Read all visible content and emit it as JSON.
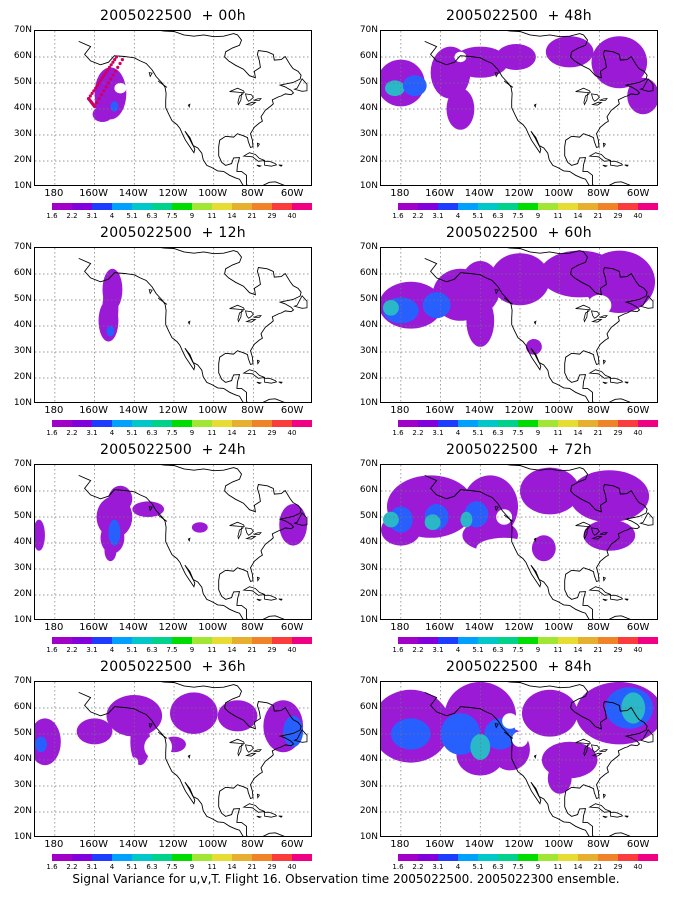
{
  "panels": [
    {
      "title": "2005022500  + 00h"
    },
    {
      "title": "2005022500  + 48h"
    },
    {
      "title": "2005022500  + 12h"
    },
    {
      "title": "2005022500  + 60h"
    },
    {
      "title": "2005022500  + 24h"
    },
    {
      "title": "2005022500  + 72h"
    },
    {
      "title": "2005022500  + 36h"
    },
    {
      "title": "2005022500  + 84h"
    }
  ],
  "lat_labels": [
    "70N",
    "60N",
    "50N",
    "40N",
    "30N",
    "20N",
    "10N"
  ],
  "lon_labels": [
    "180",
    "160W",
    "140W",
    "120W",
    "100W",
    "80W",
    "60W"
  ],
  "colorbar": {
    "labels": [
      "1.6",
      "2.2",
      "3.1",
      "4",
      "5.1",
      "6.3",
      "7.5",
      "9",
      "11",
      "14",
      "21",
      "29",
      "40"
    ],
    "colors": [
      "#a000c8",
      "#8200dc",
      "#1e3cff",
      "#00a0ff",
      "#00c8c8",
      "#00d28c",
      "#00dc00",
      "#a0e632",
      "#e6dc32",
      "#e6af2d",
      "#f08228",
      "#fa3c3c",
      "#f00082"
    ]
  },
  "map_style": {
    "variance_fill": "#9a1ad6",
    "variance_high": "#2860ff",
    "variance_peak": "#2ab8c8",
    "flight_track": "#d00060"
  },
  "caption": "Signal Variance for u,v,T. Flight 16. Observation time 2005022500. 2005022300 ensemble."
}
